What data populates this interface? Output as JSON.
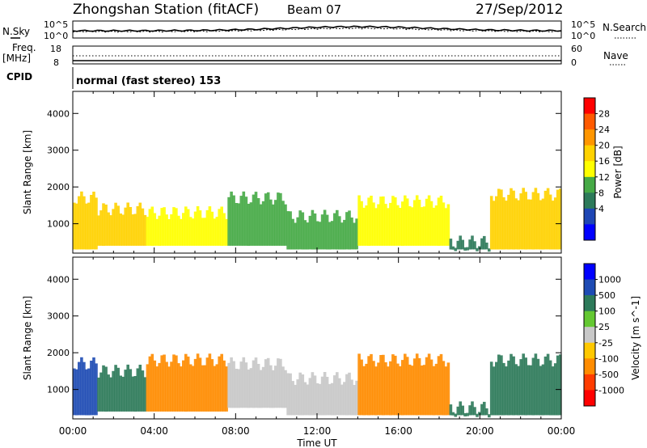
{
  "header": {
    "station": "Zhongshan Station (fitACF)",
    "beam": "Beam 07",
    "date": "27/Sep/2012"
  },
  "noise_panel": {
    "left_label": "N.Sky",
    "left_ticks": [
      "10^5",
      "10^0"
    ],
    "right_label": "N.Search",
    "right_ticks": [
      "10^5",
      "10^0"
    ]
  },
  "freq_panel": {
    "left_label_1": "Freq.",
    "left_label_2": "[MHz]",
    "left_ticks": [
      "18",
      "8"
    ],
    "right_label": "Nave",
    "right_ticks": [
      "60",
      "0"
    ]
  },
  "cpid_panel": {
    "label": "CPID",
    "text": "normal (fast stereo) 153"
  },
  "x_axis": {
    "title": "Time UT",
    "ticks": [
      "00:00",
      "04:00",
      "08:00",
      "12:00",
      "16:00",
      "20:00",
      "00:00"
    ]
  },
  "power_colorbar": {
    "label": "Power [dB]",
    "ticks": [
      "28",
      "24",
      "20",
      "16",
      "12",
      "8",
      "4"
    ],
    "colors": [
      "#ff0000",
      "#ff5a00",
      "#ff9600",
      "#ffd200",
      "#ffff00",
      "#46aa46",
      "#2d7a5a",
      "#1e46b4",
      "#0000ff"
    ]
  },
  "velocity_colorbar": {
    "label": "Velocity [m s^-1]",
    "ticks": [
      "1000",
      "500",
      "100",
      "25",
      "-25",
      "-100",
      "-500",
      "-1000"
    ],
    "colors": [
      "#0000ff",
      "#1e4bb4",
      "#2d7a5a",
      "#64c832",
      "#c8c8c8",
      "#ffc800",
      "#ff8c00",
      "#ff3c00",
      "#ff0000"
    ]
  },
  "chart_data": [
    {
      "type": "heatmap",
      "panel": "power",
      "ylabel": "Slant Range [km]",
      "xlabel": "",
      "yticks": [
        1000,
        2000,
        3000,
        4000
      ],
      "ylim": [
        200,
        4600
      ],
      "xlim_hours": [
        0,
        24
      ],
      "colorbar": "Power [dB]",
      "colorbar_ticks": [
        4,
        8,
        12,
        16,
        20,
        24,
        28
      ],
      "bands": [
        {
          "t0": 0.0,
          "t1": 1.2,
          "r0": 300,
          "r1": 1700,
          "power": 20
        },
        {
          "t0": 1.2,
          "t1": 3.6,
          "r0": 400,
          "r1": 1400,
          "power": 22
        },
        {
          "t0": 3.6,
          "t1": 7.6,
          "r0": 400,
          "r1": 1300,
          "power": 18
        },
        {
          "t0": 7.6,
          "t1": 10.5,
          "r0": 400,
          "r1": 1700,
          "power": 12
        },
        {
          "t0": 10.5,
          "t1": 14.0,
          "r0": 300,
          "r1": 1200,
          "power": 14
        },
        {
          "t0": 14.0,
          "t1": 18.5,
          "r0": 400,
          "r1": 1600,
          "power": 17
        },
        {
          "t0": 18.5,
          "t1": 20.5,
          "r0": 300,
          "r1": 500,
          "power": 8
        },
        {
          "t0": 20.5,
          "t1": 24.0,
          "r0": 300,
          "r1": 1800,
          "power": 22
        }
      ]
    },
    {
      "type": "heatmap",
      "panel": "velocity",
      "ylabel": "Slant Range [km]",
      "xlabel": "Time UT",
      "yticks": [
        1000,
        2000,
        3000,
        4000
      ],
      "ylim": [
        200,
        4600
      ],
      "xlim_hours": [
        0,
        24
      ],
      "colorbar": "Velocity [m s^-1]",
      "colorbar_ticks": [
        -1000,
        -500,
        -100,
        -25,
        25,
        100,
        500,
        1000
      ],
      "bands": [
        {
          "t0": 0.0,
          "t1": 1.2,
          "r0": 300,
          "r1": 1700,
          "velocity": 600
        },
        {
          "t0": 1.2,
          "t1": 3.6,
          "r0": 400,
          "r1": 1500,
          "velocity": 150
        },
        {
          "t0": 3.6,
          "t1": 7.6,
          "r0": 400,
          "r1": 1800,
          "velocity": -150
        },
        {
          "t0": 7.6,
          "t1": 10.5,
          "r0": 500,
          "r1": 1700,
          "velocity": 0
        },
        {
          "t0": 10.5,
          "t1": 14.0,
          "r0": 300,
          "r1": 1300,
          "velocity": 0
        },
        {
          "t0": 14.0,
          "t1": 18.5,
          "r0": 300,
          "r1": 1800,
          "velocity": -200
        },
        {
          "t0": 18.5,
          "t1": 20.5,
          "r0": 300,
          "r1": 500,
          "velocity": 150
        },
        {
          "t0": 20.5,
          "t1": 24.0,
          "r0": 300,
          "r1": 1800,
          "velocity": 150
        }
      ]
    }
  ]
}
